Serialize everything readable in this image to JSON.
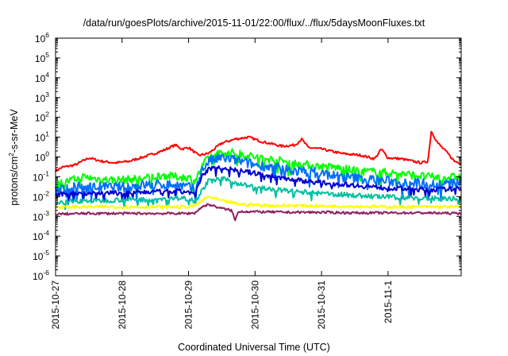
{
  "chart_data": {
    "type": "line",
    "title": "/data/run/goesPlots/archive/2015-11-01/22:00/flux/../flux/5daysMoonFluxes.txt",
    "xlabel": "Coordinated Universal Time (UTC)",
    "ylabel": {
      "prefix": "protons/cm",
      "sup": "2",
      "suffix": "-s-sr-MeV"
    },
    "yscale": "log",
    "ylim": [
      1e-06,
      1000000.0
    ],
    "xlim_days": [
      0,
      6.1
    ],
    "grid": false,
    "legend": "none",
    "yticks": [
      {
        "base": "10",
        "exp": "-6",
        "value": 1e-06
      },
      {
        "base": "10",
        "exp": "-5",
        "value": 1e-05
      },
      {
        "base": "10",
        "exp": "-4",
        "value": 0.0001
      },
      {
        "base": "10",
        "exp": "-3",
        "value": 0.001
      },
      {
        "base": "10",
        "exp": "-2",
        "value": 0.01
      },
      {
        "base": "10",
        "exp": "-1",
        "value": 0.1
      },
      {
        "base": "10",
        "exp": "0",
        "value": 1
      },
      {
        "base": "10",
        "exp": "1",
        "value": 10
      },
      {
        "base": "10",
        "exp": "2",
        "value": 100
      },
      {
        "base": "10",
        "exp": "3",
        "value": 1000
      },
      {
        "base": "10",
        "exp": "4",
        "value": 10000
      },
      {
        "base": "10",
        "exp": "5",
        "value": 100000
      },
      {
        "base": "10",
        "exp": "6",
        "value": 1000000
      }
    ],
    "xticks": [
      {
        "label": "2015-10-27",
        "day": 0
      },
      {
        "label": "2015-10-28",
        "day": 1
      },
      {
        "label": "2015-10-29",
        "day": 2
      },
      {
        "label": "2015-10-30",
        "day": 3
      },
      {
        "label": "2015-10-31",
        "day": 4
      },
      {
        "label": "2015-11-1",
        "day": 5
      }
    ],
    "series": [
      {
        "color": "#ff0000",
        "noise": 0.06,
        "points": [
          [
            0,
            0.2
          ],
          [
            0.1,
            0.3
          ],
          [
            0.3,
            0.4
          ],
          [
            0.5,
            0.9
          ],
          [
            0.7,
            0.6
          ],
          [
            0.9,
            0.5
          ],
          [
            1.1,
            0.6
          ],
          [
            1.4,
            1.2
          ],
          [
            1.6,
            2.0
          ],
          [
            1.8,
            4.0
          ],
          [
            1.9,
            2.5
          ],
          [
            2.0,
            3.0
          ],
          [
            2.15,
            1.2
          ],
          [
            2.3,
            1.5
          ],
          [
            2.5,
            5
          ],
          [
            2.7,
            8
          ],
          [
            2.9,
            10
          ],
          [
            3.1,
            6
          ],
          [
            3.4,
            3.5
          ],
          [
            3.6,
            4
          ],
          [
            3.7,
            8
          ],
          [
            3.8,
            3
          ],
          [
            4.0,
            2.5
          ],
          [
            4.3,
            1.5
          ],
          [
            4.6,
            1.2
          ],
          [
            4.8,
            0.8
          ],
          [
            4.9,
            2.5
          ],
          [
            5.0,
            0.9
          ],
          [
            5.2,
            0.8
          ],
          [
            5.5,
            0.5
          ],
          [
            5.6,
            0.6
          ],
          [
            5.65,
            20
          ],
          [
            5.75,
            5
          ],
          [
            5.9,
            1.5
          ],
          [
            6.0,
            0.6
          ],
          [
            6.1,
            0.5
          ]
        ]
      },
      {
        "color": "#00ff00",
        "noise": 0.2,
        "points": [
          [
            0,
            0.04
          ],
          [
            0.2,
            0.06
          ],
          [
            0.4,
            0.1
          ],
          [
            0.6,
            0.08
          ],
          [
            0.8,
            0.07
          ],
          [
            1.0,
            0.07
          ],
          [
            1.3,
            0.08
          ],
          [
            1.6,
            0.12
          ],
          [
            1.8,
            0.1
          ],
          [
            2.0,
            0.09
          ],
          [
            2.1,
            0.06
          ],
          [
            2.2,
            0.3
          ],
          [
            2.3,
            1.0
          ],
          [
            2.5,
            1.8
          ],
          [
            2.7,
            1.6
          ],
          [
            3.0,
            1.0
          ],
          [
            3.3,
            0.7
          ],
          [
            3.6,
            0.5
          ],
          [
            3.9,
            0.35
          ],
          [
            4.2,
            0.3
          ],
          [
            4.5,
            0.2
          ],
          [
            4.8,
            0.18
          ],
          [
            5.1,
            0.15
          ],
          [
            5.4,
            0.12
          ],
          [
            5.6,
            0.1
          ],
          [
            5.8,
            0.09
          ],
          [
            6.1,
            0.1
          ]
        ]
      },
      {
        "color": "#0070ff",
        "noise": 0.25,
        "points": [
          [
            0,
            0.02
          ],
          [
            0.3,
            0.03
          ],
          [
            0.6,
            0.03
          ],
          [
            1.0,
            0.03
          ],
          [
            1.4,
            0.04
          ],
          [
            1.8,
            0.04
          ],
          [
            2.0,
            0.03
          ],
          [
            2.1,
            0.02
          ],
          [
            2.2,
            0.2
          ],
          [
            2.3,
            0.6
          ],
          [
            2.5,
            0.9
          ],
          [
            2.7,
            0.7
          ],
          [
            3.0,
            0.4
          ],
          [
            3.3,
            0.3
          ],
          [
            3.6,
            0.2
          ],
          [
            4.0,
            0.15
          ],
          [
            4.3,
            0.1
          ],
          [
            4.6,
            0.08
          ],
          [
            5.0,
            0.06
          ],
          [
            5.4,
            0.05
          ],
          [
            5.8,
            0.04
          ],
          [
            6.1,
            0.05
          ]
        ]
      },
      {
        "color": "#0000d0",
        "noise": 0.12,
        "points": [
          [
            0,
            0.012
          ],
          [
            0.3,
            0.015
          ],
          [
            0.6,
            0.015
          ],
          [
            1.0,
            0.015
          ],
          [
            1.4,
            0.017
          ],
          [
            1.8,
            0.018
          ],
          [
            2.0,
            0.017
          ],
          [
            2.1,
            0.013
          ],
          [
            2.2,
            0.1
          ],
          [
            2.3,
            0.25
          ],
          [
            2.5,
            0.3
          ],
          [
            2.7,
            0.22
          ],
          [
            3.0,
            0.15
          ],
          [
            3.3,
            0.1
          ],
          [
            3.6,
            0.07
          ],
          [
            4.0,
            0.05
          ],
          [
            4.4,
            0.04
          ],
          [
            4.8,
            0.03
          ],
          [
            5.2,
            0.025
          ],
          [
            5.6,
            0.022
          ],
          [
            6.1,
            0.025
          ]
        ]
      },
      {
        "color": "#00c0a0",
        "noise": 0.12,
        "points": [
          [
            0,
            0.005
          ],
          [
            0.3,
            0.006
          ],
          [
            0.6,
            0.006
          ],
          [
            1.0,
            0.007
          ],
          [
            1.4,
            0.007
          ],
          [
            1.8,
            0.008
          ],
          [
            2.0,
            0.008
          ],
          [
            2.1,
            0.006
          ],
          [
            2.2,
            0.02
          ],
          [
            2.3,
            0.06
          ],
          [
            2.5,
            0.08
          ],
          [
            2.7,
            0.05
          ],
          [
            3.0,
            0.03
          ],
          [
            3.3,
            0.022
          ],
          [
            3.6,
            0.018
          ],
          [
            4.0,
            0.014
          ],
          [
            4.4,
            0.012
          ],
          [
            4.8,
            0.01
          ],
          [
            5.2,
            0.009
          ],
          [
            5.6,
            0.008
          ],
          [
            6.1,
            0.008
          ]
        ]
      },
      {
        "color": "#ffff00",
        "noise": 0.08,
        "points": [
          [
            0,
            0.003
          ],
          [
            0.5,
            0.003
          ],
          [
            1.0,
            0.003
          ],
          [
            1.5,
            0.003
          ],
          [
            2.0,
            0.003
          ],
          [
            2.1,
            0.0035
          ],
          [
            2.2,
            0.006
          ],
          [
            2.3,
            0.01
          ],
          [
            2.5,
            0.006
          ],
          [
            2.8,
            0.004
          ],
          [
            3.2,
            0.0035
          ],
          [
            3.6,
            0.0035
          ],
          [
            4.0,
            0.0033
          ],
          [
            4.5,
            0.0032
          ],
          [
            5.0,
            0.003
          ],
          [
            5.5,
            0.003
          ],
          [
            6.1,
            0.003
          ]
        ]
      },
      {
        "color": "#902060",
        "noise": 0.06,
        "points": [
          [
            0,
            0.0013
          ],
          [
            0.5,
            0.0014
          ],
          [
            1.0,
            0.0014
          ],
          [
            1.5,
            0.0014
          ],
          [
            2.0,
            0.0014
          ],
          [
            2.1,
            0.0015
          ],
          [
            2.2,
            0.003
          ],
          [
            2.3,
            0.004
          ],
          [
            2.5,
            0.0025
          ],
          [
            2.65,
            0.002
          ],
          [
            2.7,
            0.0006
          ],
          [
            2.75,
            0.0018
          ],
          [
            3.0,
            0.0017
          ],
          [
            3.5,
            0.0016
          ],
          [
            4.0,
            0.0016
          ],
          [
            4.5,
            0.0015
          ],
          [
            5.0,
            0.0015
          ],
          [
            5.5,
            0.0015
          ],
          [
            6.1,
            0.0014
          ]
        ]
      }
    ]
  }
}
